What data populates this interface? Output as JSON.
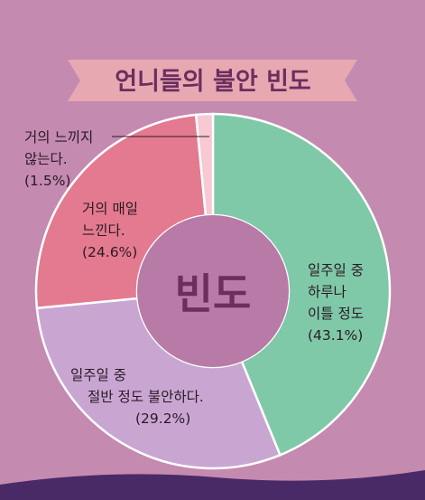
{
  "colors": {
    "background": "#c48ab0",
    "banner": "#e8a8b2",
    "title": "#6b2e5e",
    "center_circle": "#b87aa6"
  },
  "chart_data": {
    "type": "pie",
    "title": "언니들의 불안 빈도",
    "center_label": "빈도",
    "slices": [
      {
        "label_lines": [
          "일주일 중",
          "하루나",
          "이틀 정도"
        ],
        "value_text": "(43.1%)",
        "value": 43.1,
        "color": "#7fc9a8"
      },
      {
        "label_lines": [
          "일주일 중",
          "절반 정도 불안하다."
        ],
        "value_text": "(29.2%)",
        "value": 29.2,
        "color": "#c9a6d2"
      },
      {
        "label_lines": [
          "거의 매일",
          "느낀다."
        ],
        "value_text": "(24.6%)",
        "value": 24.6,
        "color": "#e47a8f"
      },
      {
        "label_lines": [
          "거의 느끼지",
          "않는다."
        ],
        "value_text": "(1.5%)",
        "value": 1.5,
        "color": "#f7c9d2"
      }
    ]
  }
}
